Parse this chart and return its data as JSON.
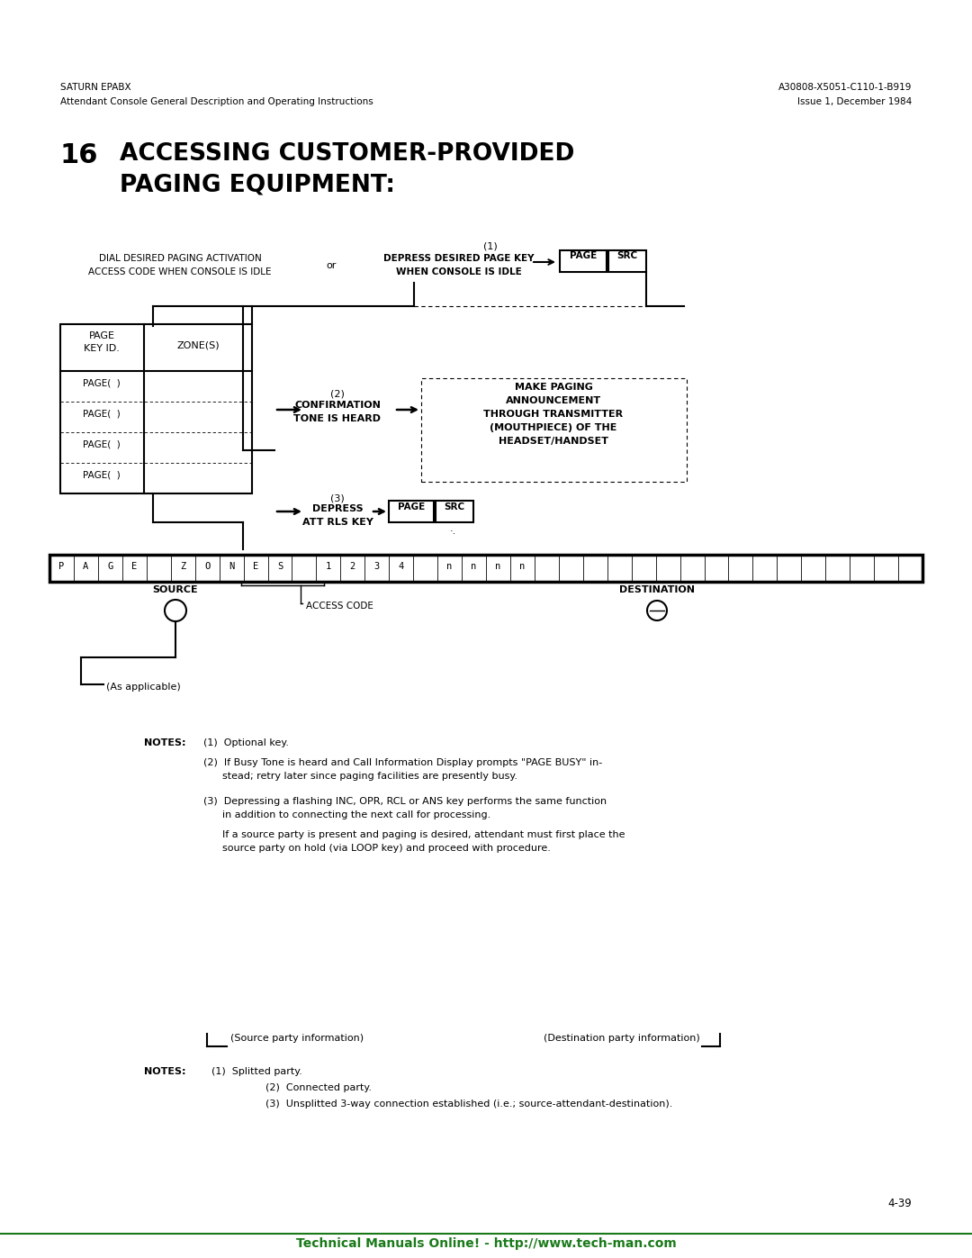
{
  "page_bg": "#ffffff",
  "header_left_line1": "SATURN EPABX",
  "header_left_line2": "Attendant Console General Description and Operating Instructions",
  "header_right_line1": "A30808-X5051-C110-1-B919",
  "header_right_line2": "Issue 1, December 1984",
  "section_num": "16",
  "section_title_line1": "ACCESSING CUSTOMER-PROVIDED",
  "section_title_line2": "PAGING EQUIPMENT:",
  "step1_label": "(1)",
  "step1_left_text_l1": "DIAL DESIRED PAGING ACTIVATION",
  "step1_left_text_l2": "ACCESS CODE WHEN CONSOLE IS IDLE",
  "step1_or": "or",
  "step1_right_text_l1": "DEPRESS DESIRED PAGE KEY",
  "step1_right_text_l2": "WHEN CONSOLE IS IDLE",
  "btn_page": "PAGE",
  "btn_src": "SRC",
  "table_header_col1_l1": "PAGE",
  "table_header_col1_l2": "KEY ID.",
  "table_header_col2": "ZONE(S)",
  "table_rows": [
    "PAGE(  )",
    "PAGE(  )",
    "PAGE(  )",
    "PAGE(  )"
  ],
  "step2_label": "(2)",
  "step2_text_l1": "CONFIRMATION",
  "step2_text_l2": "TONE IS HEARD",
  "step2_right_l1": "MAKE PAGING",
  "step2_right_l2": "ANNOUNCEMENT",
  "step2_right_l3": "THROUGH TRANSMITTER",
  "step2_right_l4": "(MOUTHPIECE) OF THE",
  "step2_right_l5": "HEADSET/HANDSET",
  "step3_label": "(3)",
  "step3_text_l1": "DEPRESS",
  "step3_text_l2": "ATT RLS KEY",
  "source_label": "SOURCE",
  "dest_label": "DESTINATION",
  "access_code_label": "ACCESS CODE",
  "as_applicable": "(As applicable)",
  "notes_title": "NOTES:",
  "note1": "(1)  Optional key.",
  "note2_l1": "(2)  If Busy Tone is heard and Call Information Display prompts \"PAGE BUSY\" in-",
  "note2_l2": "      stead; retry later since paging facilities are presently busy.",
  "note3_l1": "(3)  Depressing a flashing INC, OPR, RCL or ANS key performs the same function",
  "note3_l2": "      in addition to connecting the next call for processing.",
  "note3_l3": "      If a source party is present and paging is desired, attendant must first place the",
  "note3_l4": "      source party on hold (via LOOP key) and proceed with procedure.",
  "bottom_left_label": "(Source party information)",
  "bottom_right_label": "(Destination party information)",
  "notes2_title": "NOTES:",
  "notes2_1": "(1)  Splitted party.",
  "notes2_2": "(2)  Connected party.",
  "notes2_3": "(3)  Unsplitted 3-way connection established (i.e.; source-attendant-destination).",
  "footer_text": "Technical Manuals Online! - http://www.tech-man.com",
  "page_num": "4-39",
  "text_color": "#000000",
  "green_color": "#1a7a1a"
}
